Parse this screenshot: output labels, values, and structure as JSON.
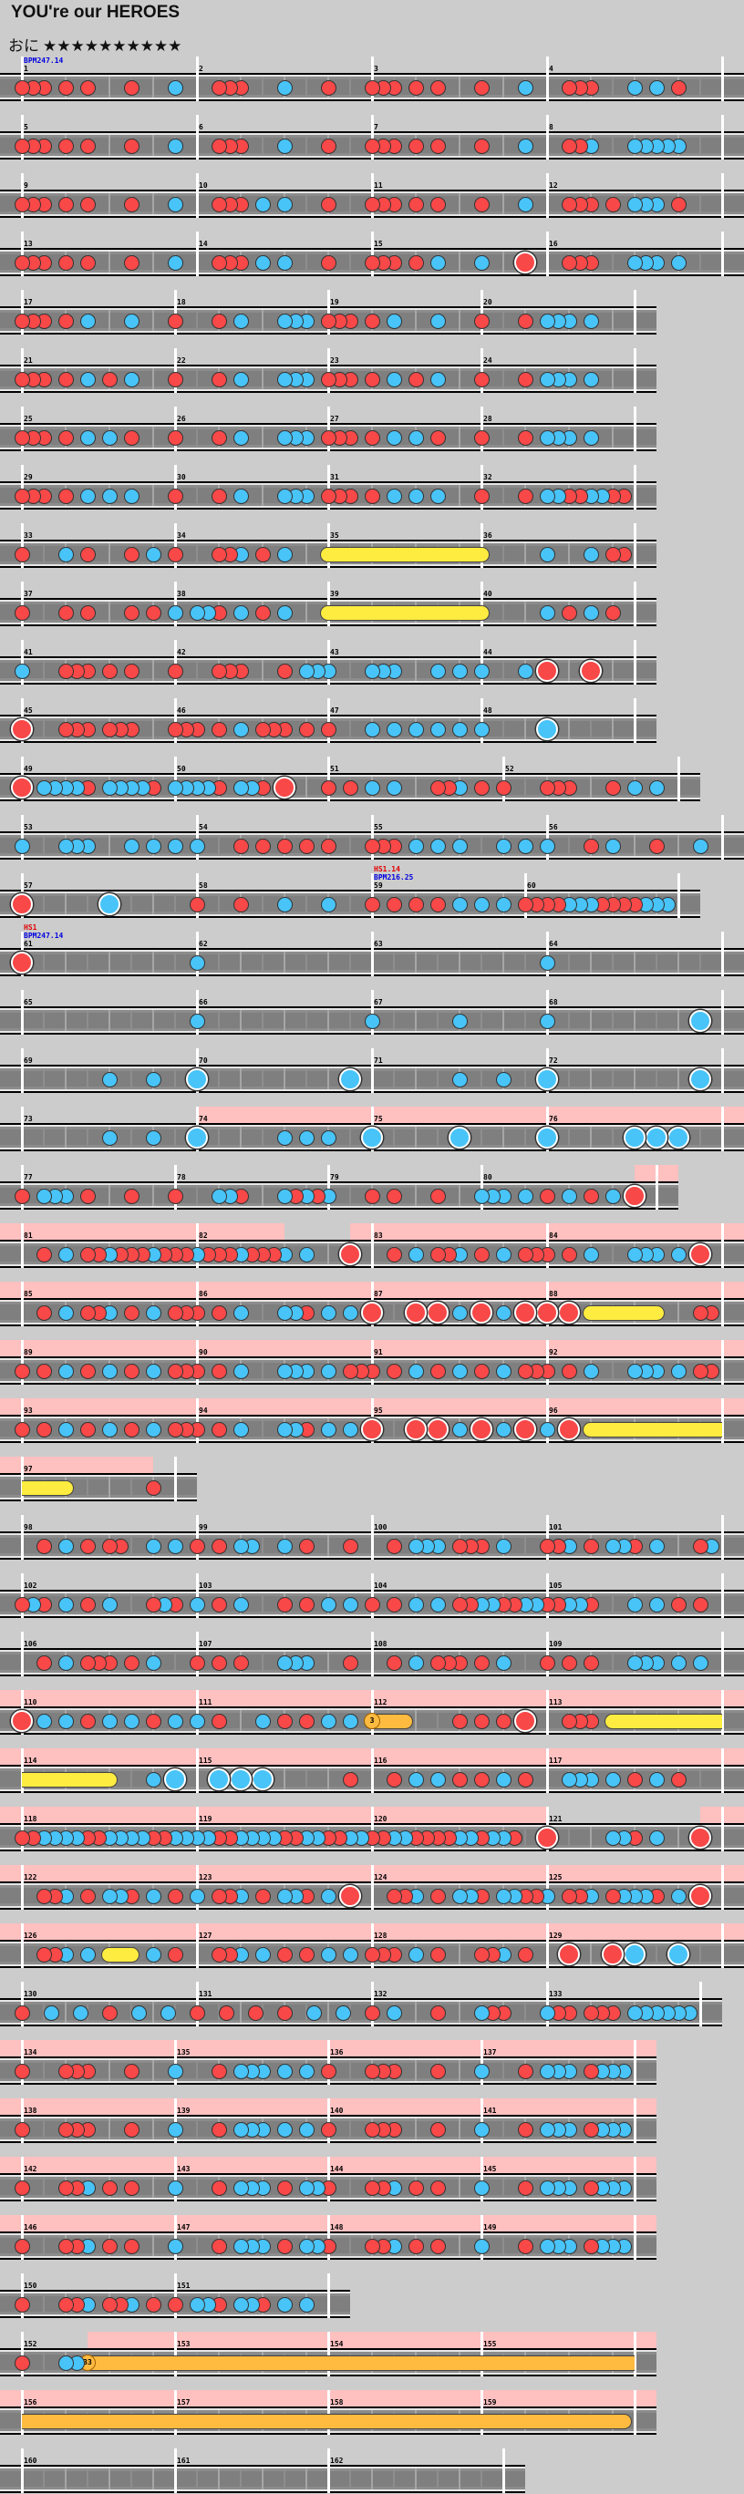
{
  "title": "YOU're our HEROES",
  "difficulty": {
    "name": "おに",
    "stars": "★★★★★★★★★★",
    "level": 10
  },
  "colors": {
    "background": "#cccccc",
    "lane": "#7f7f7f",
    "don": "#f84848",
    "ka": "#48c4f8",
    "roll": "#ffec40",
    "balloon": "#ffbb40",
    "gogo": "#ffc0c0"
  },
  "balloons": [
    "3",
    "33"
  ],
  "rows": [
    {
      "measures": [
        {
          "n": 1,
          "notes": "ddd.d.d...d...k.",
          "bpm": "BPM247.14"
        },
        {
          "n": 2,
          "notes": "..ddd...k...d..."
        },
        {
          "n": 3,
          "notes": "ddd.d.d...d...k."
        },
        {
          "n": 4,
          "notes": "..ddd...k.k.d..."
        }
      ]
    },
    {
      "measures": [
        {
          "n": 5,
          "notes": "ddd.d.d...d...k."
        },
        {
          "n": 6,
          "notes": "..ddd...k...d..."
        },
        {
          "n": 7,
          "notes": "ddd.d.d...d...k."
        },
        {
          "n": 8,
          "notes": "..ddk...kkkkk..."
        }
      ]
    },
    {
      "measures": [
        {
          "n": 9,
          "notes": "ddd.d.d...d...k."
        },
        {
          "n": 10,
          "notes": "..ddd.k.k...d..."
        },
        {
          "n": 11,
          "notes": "ddd.d.d...d...k."
        },
        {
          "n": 12,
          "notes": "..ddd.d.kkk.d..."
        }
      ]
    },
    {
      "measures": [
        {
          "n": 13,
          "notes": "ddd.d.d...d...k."
        },
        {
          "n": 14,
          "notes": "..ddd.k.k...d..."
        },
        {
          "n": 15,
          "notes": "ddd.d.k...k...D."
        },
        {
          "n": 16,
          "notes": "..ddd...kkk.k..."
        }
      ]
    },
    {
      "measures": [
        {
          "n": 17,
          "len": 14,
          "notes": "ddd.d.k...k..."
        },
        {
          "n": 18,
          "len": 14,
          "notes": "d...d.k...kkk."
        },
        {
          "n": 19,
          "len": 14,
          "notes": "ddd.d.k...k..."
        },
        {
          "n": 20,
          "len": 14,
          "notes": "d...d.kkk.k..."
        }
      ]
    },
    {
      "measures": [
        {
          "n": 21,
          "len": 14,
          "notes": "ddd.d.k.d.k..."
        },
        {
          "n": 22,
          "len": 14,
          "notes": "d...d.k...kkk."
        },
        {
          "n": 23,
          "len": 14,
          "notes": "ddd.d.k.d.k..."
        },
        {
          "n": 24,
          "len": 14,
          "notes": "d...d.kkk.k..."
        }
      ]
    },
    {
      "measures": [
        {
          "n": 25,
          "len": 14,
          "notes": "ddd.d.k.k.d..."
        },
        {
          "n": 26,
          "len": 14,
          "notes": "d...d.k...kkk."
        },
        {
          "n": 27,
          "len": 14,
          "notes": "ddd.d.k.k.d..."
        },
        {
          "n": 28,
          "len": 14,
          "notes": "d...d.kkk.k..."
        }
      ]
    },
    {
      "measures": [
        {
          "n": 29,
          "len": 14,
          "notes": "ddd.d.k.k.k..."
        },
        {
          "n": 30,
          "len": 14,
          "notes": "d...d.k...kkk."
        },
        {
          "n": 31,
          "len": 14,
          "notes": "ddd.d.k.k.k..."
        },
        {
          "n": 32,
          "len": 14,
          "notes": "d...d.kkddkkdd"
        }
      ]
    },
    {
      "measures": [
        {
          "n": 33,
          "len": 14,
          "notes": "d...k.d...d.k."
        },
        {
          "n": 34,
          "len": 14,
          "notes": "d...ddk.d.k..."
        },
        {
          "n": 35,
          "len": 14,
          "notes": "R............."
        },
        {
          "n": 36,
          "len": 14,
          "notes": ").....k...k.dd"
        }
      ]
    },
    {
      "measures": [
        {
          "n": 37,
          "len": 14,
          "notes": "d...d.d...d.d."
        },
        {
          "n": 38,
          "len": 14,
          "notes": "k.kkd.k.d.k..."
        },
        {
          "n": 39,
          "len": 14,
          "notes": "R............."
        },
        {
          "n": 40,
          "len": 14,
          "notes": ").....k.d.k.d."
        }
      ]
    },
    {
      "measures": [
        {
          "n": 41,
          "len": 14,
          "notes": "k...ddd.d.d..."
        },
        {
          "n": 42,
          "len": 14,
          "notes": "d...ddd...d.kk"
        },
        {
          "n": 43,
          "len": 14,
          "notes": "k...kkk...k.k."
        },
        {
          "n": 44,
          "len": 14,
          "notes": "k...k.D...D..."
        }
      ]
    },
    {
      "measures": [
        {
          "n": 45,
          "len": 14,
          "notes": "D...ddd.ddd..."
        },
        {
          "n": 46,
          "len": 14,
          "notes": "ddd.d.k.ddd.d."
        },
        {
          "n": 47,
          "len": 14,
          "notes": "d...k.k.k.k.k."
        },
        {
          "n": 48,
          "len": 14,
          "notes": "k.....K......."
        }
      ]
    },
    {
      "measures": [
        {
          "n": 49,
          "len": 14,
          "notes": "D.kkkkd.kkkkd."
        },
        {
          "n": 50,
          "len": 14,
          "notes": "kkkkd.kkd.D..."
        },
        {
          "n": 51,
          "notes": "d.d.k.k...ddk.d."
        },
        {
          "n": 52,
          "notes": "d...ddd...d.k.k."
        }
      ]
    },
    {
      "measures": [
        {
          "n": 53,
          "notes": "k...kkk...k.k.k."
        },
        {
          "n": 54,
          "notes": "k...d.d.d.d.d..."
        },
        {
          "n": 55,
          "notes": "ddd.k.k.k...k.k."
        },
        {
          "n": 56,
          "notes": "k...d.k...d...k."
        }
      ]
    },
    {
      "measures": [
        {
          "n": 57,
          "notes": "D.......K......."
        },
        {
          "n": 58,
          "notes": "d...d...k...k..."
        },
        {
          "n": 59,
          "len": 14,
          "notes": "d.d.d.d.k.k.k.",
          "hs": "HS1.14",
          "bpm": "BPM216.25"
        },
        {
          "n": 60,
          "len": 14,
          "notes": "ddddkkkddddkkk"
        }
      ]
    },
    {
      "measures": [
        {
          "n": 61,
          "notes": "D...............",
          "hs": "HS1",
          "bpm": "BPM247.14"
        },
        {
          "n": 62,
          "notes": "k..............."
        },
        {
          "n": 63,
          "notes": ""
        },
        {
          "n": 64,
          "notes": "k..............."
        }
      ]
    },
    {
      "measures": [
        {
          "n": 65,
          "notes": ""
        },
        {
          "n": 66,
          "notes": "k..............."
        },
        {
          "n": 67,
          "notes": "k.......k......."
        },
        {
          "n": 68,
          "notes": "k.............K."
        }
      ]
    },
    {
      "measures": [
        {
          "n": 69,
          "notes": "........k...k..."
        },
        {
          "n": 70,
          "notes": "K.............K."
        },
        {
          "n": 71,
          "notes": "........k...k..."
        },
        {
          "n": 72,
          "notes": "K.............K."
        }
      ]
    },
    {
      "measures": [
        {
          "n": 73,
          "notes": "........k...k..."
        },
        {
          "n": 74,
          "notes": "K.......k.k.k...",
          "gogo": true
        },
        {
          "n": 75,
          "notes": "K.......K.......",
          "gogo": true
        },
        {
          "n": 76,
          "notes": "K.......K.K.K...",
          "gogo": true
        }
      ]
    },
    {
      "measures": [
        {
          "n": 77,
          "len": 14,
          "notes": "d.kkk.d...d..."
        },
        {
          "n": 78,
          "len": 14,
          "notes": "d...kkd...kdkd"
        },
        {
          "n": 79,
          "len": 14,
          "notes": "k...d.d...d..."
        },
        {
          "n": 80,
          "notes": "kkk.k.d.k.d.k.D.",
          "gogo": [
            [
              14,
              16
            ]
          ]
        }
      ]
    },
    {
      "measures": [
        {
          "n": 81,
          "notes": "..d.k.ddkdddkddd",
          "gogo": true
        },
        {
          "n": 82,
          "notes": "kdddkdddk.k...D.",
          "gogo": [
            [
              0,
              8
            ],
            [
              14,
              16
            ]
          ]
        },
        {
          "n": 83,
          "notes": "..d.k.ddk.d.k.dd",
          "gogo": true
        },
        {
          "n": 84,
          "notes": "d.d.k...kkk.k.D.",
          "gogo": true
        }
      ]
    },
    {
      "measures": [
        {
          "n": 85,
          "notes": "..d.k.ddk.d.k.dd",
          "gogo": true
        },
        {
          "n": 86,
          "notes": "d.d.k...kkd.k.k.",
          "gogo": true
        },
        {
          "n": 87,
          "notes": "D...D.D.k.D.k.D.",
          "gogo": true
        },
        {
          "n": 88,
          "notes": "D.D.R.....)...dd",
          "gogo": true
        }
      ]
    },
    {
      "measures": [
        {
          "n": 89,
          "notes": "d.d.k.d.k.d.k.dd",
          "gogo": true
        },
        {
          "n": 90,
          "notes": "d.d.k...kkk.k.dd",
          "gogo": true
        },
        {
          "n": 91,
          "notes": "d.d.k.d.k.d.k.dd",
          "gogo": true
        },
        {
          "n": 92,
          "notes": "d.d.k...kkk.k.dd",
          "gogo": true
        }
      ]
    },
    {
      "measures": [
        {
          "n": 93,
          "notes": "d.d.k.d.k.d.k.dd",
          "gogo": true
        },
        {
          "n": 94,
          "notes": "d.d.k...kkd.k.k.",
          "gogo": true
        },
        {
          "n": 95,
          "notes": "D...D.D.k.D.k.D.",
          "gogo": true
        },
        {
          "n": 96,
          "notes": "k.D.R...........",
          "gogo": true
        }
      ]
    },
    {
      "measures": [
        {
          "n": 97,
          "len": 14,
          "notes": "....).......d.",
          "gogo": [
            [
              0,
              12
            ]
          ]
        }
      ]
    },
    {
      "measures": [
        {
          "n": 98,
          "notes": "..d.k.d.dd..k.k."
        },
        {
          "n": 99,
          "notes": "d.d.kk..k.d...d."
        },
        {
          "n": 100,
          "notes": "..d.kkk.ddd.k..."
        },
        {
          "n": 101,
          "notes": "ddk.d.kkd.k...dk"
        }
      ]
    },
    {
      "measures": [
        {
          "n": 102,
          "notes": "dkd.k.d.k...dkd."
        },
        {
          "n": 103,
          "notes": "k.d.k...d.d.k.k."
        },
        {
          "n": 104,
          "notes": "d.d.k.k.ddkkddkk"
        },
        {
          "n": 105,
          "notes": "ddkkd...k.k.d.d."
        }
      ]
    },
    {
      "measures": [
        {
          "n": 106,
          "notes": "..d.k.ddd.d.k..."
        },
        {
          "n": 107,
          "notes": "d.d.d...kkk...d."
        },
        {
          "n": 108,
          "notes": "..d.k.ddd.d.k..."
        },
        {
          "n": 109,
          "notes": "d.d.d...kkk.k.k."
        }
      ]
    },
    {
      "measures": [
        {
          "n": 110,
          "notes": "D.k.k.d.k.k.d.k.",
          "gogo": true
        },
        {
          "n": 111,
          "notes": "k.d...k.d.d.k.k.",
          "gogo": true
        },
        {
          "n": 112,
          "notes": "O..)....d.d.d.D.",
          "gogo": true
        },
        {
          "n": 113,
          "notes": "..ddd.R.........",
          "gogo": true
        }
      ]
    },
    {
      "measures": [
        {
          "n": 114,
          "notes": "........)...k.K.",
          "gogo": true
        },
        {
          "n": 115,
          "notes": "..K.K.K.......d.",
          "gogo": true
        },
        {
          "n": 116,
          "notes": "..d.k.k.d.d.k.d.",
          "gogo": true
        },
        {
          "n": 117,
          "notes": "..kkk.k.d.k.d...",
          "gogo": true
        }
      ]
    },
    {
      "measures": [
        {
          "n": 118,
          "notes": "ddkkkkddkkkkddkk",
          "gogo": true
        },
        {
          "n": 119,
          "notes": "kkddkkkkddkkddkk",
          "gogo": true
        },
        {
          "n": 120,
          "notes": "ddkkddddkkdkkd..",
          "gogo": true
        },
        {
          "n": 121,
          "notes": "D.....kkd.k...D.",
          "gogo": [
            [
              14,
              16
            ]
          ]
        }
      ]
    },
    {
      "measures": [
        {
          "n": 122,
          "notes": "..ddk.d.kkd.k.d.",
          "gogo": true
        },
        {
          "n": 123,
          "notes": "k.ddk.d.kkd.k.D.",
          "gogo": true
        },
        {
          "n": 124,
          "notes": "..ddk.d.kkd.kkdd",
          "gogo": true
        },
        {
          "n": 125,
          "notes": "k.ddk.dkkkd.k.D.",
          "gogo": true
        }
      ]
    },
    {
      "measures": [
        {
          "n": 126,
          "notes": "..ddk.k.R.).k.d.",
          "gogo": true
        },
        {
          "n": 127,
          "notes": "..ddk.k.d.d.k.k.",
          "gogo": true
        },
        {
          "n": 128,
          "notes": "ddd.k.d...ddk.d.",
          "gogo": true
        },
        {
          "n": 129,
          "notes": "..D...D.K...K...",
          "gogo": true
        }
      ]
    },
    {
      "measures": [
        {
          "n": 130,
          "notes": "d...k...k...d...k...k..."
        },
        {
          "n": 131,
          "notes": "d...d...d...d...k...k..."
        },
        {
          "n": 132,
          "notes": "d.k...d...kdd..."
        },
        {
          "n": 133,
          "len": 14,
          "notes": "kdd.ddd.kkkkkk"
        }
      ]
    },
    {
      "measures": [
        {
          "n": 134,
          "len": 14,
          "notes": "d...ddd...d...",
          "gogo": true
        },
        {
          "n": 135,
          "len": 14,
          "notes": "k...d.kkk.k.k.",
          "gogo": true
        },
        {
          "n": 136,
          "len": 14,
          "notes": "d...ddd...d...",
          "gogo": true
        },
        {
          "n": 137,
          "len": 14,
          "notes": "k...d.kkk.dkkk",
          "gogo": true
        }
      ]
    },
    {
      "measures": [
        {
          "n": 138,
          "len": 14,
          "notes": "d...ddd...d...",
          "gogo": true
        },
        {
          "n": 139,
          "len": 14,
          "notes": "k...d.kkk.k.k.",
          "gogo": true
        },
        {
          "n": 140,
          "len": 14,
          "notes": "d...ddd...d...",
          "gogo": true
        },
        {
          "n": 141,
          "len": 14,
          "notes": "k...d.kkk.dkkk",
          "gogo": true
        }
      ]
    },
    {
      "measures": [
        {
          "n": 142,
          "len": 14,
          "notes": "d...ddk.d.d...",
          "gogo": true
        },
        {
          "n": 143,
          "len": 14,
          "notes": "k...d.kkk.d.kk",
          "gogo": true
        },
        {
          "n": 144,
          "len": 14,
          "notes": "d...ddk.d.d...",
          "gogo": true
        },
        {
          "n": 145,
          "len": 14,
          "notes": "k...d.kkk.dkkk",
          "gogo": true
        }
      ]
    },
    {
      "measures": [
        {
          "n": 146,
          "len": 14,
          "notes": "d...ddk.d.d...",
          "gogo": true
        },
        {
          "n": 147,
          "len": 14,
          "notes": "k...d.kkk.d.kk",
          "gogo": true
        },
        {
          "n": 148,
          "len": 14,
          "notes": "d...ddk.d.d...",
          "gogo": true
        },
        {
          "n": 149,
          "len": 14,
          "notes": "k...d.kkk.dkkk",
          "gogo": true
        }
      ]
    },
    {
      "measures": [
        {
          "n": 150,
          "len": 14,
          "notes": "d...ddk.ddk.d."
        },
        {
          "n": 151,
          "len": 14,
          "notes": "d.kkd.kkd.k.k."
        }
      ]
    },
    {
      "measures": [
        {
          "n": 152,
          "len": 14,
          "notes": "d...kkO.......",
          "gogo": [
            [
              6,
              14
            ]
          ]
        },
        {
          "n": 153,
          "len": 14,
          "notes": "",
          "gogo": true
        },
        {
          "n": 154,
          "len": 14,
          "notes": "",
          "gogo": true
        },
        {
          "n": 155,
          "len": 14,
          "notes": "",
          "gogo": true
        }
      ]
    },
    {
      "measures": [
        {
          "n": 156,
          "len": 14,
          "notes": "",
          "gogo": true
        },
        {
          "n": 157,
          "len": 14,
          "notes": "",
          "gogo": true
        },
        {
          "n": 158,
          "len": 14,
          "notes": "",
          "gogo": true
        },
        {
          "n": 159,
          "len": 14,
          "notes": ".............)",
          "gogo": true
        }
      ]
    },
    {
      "measures": [
        {
          "n": 160,
          "len": 14,
          "notes": ""
        },
        {
          "n": 161,
          "len": 14,
          "notes": ""
        },
        {
          "n": 162,
          "notes": ""
        }
      ]
    }
  ]
}
